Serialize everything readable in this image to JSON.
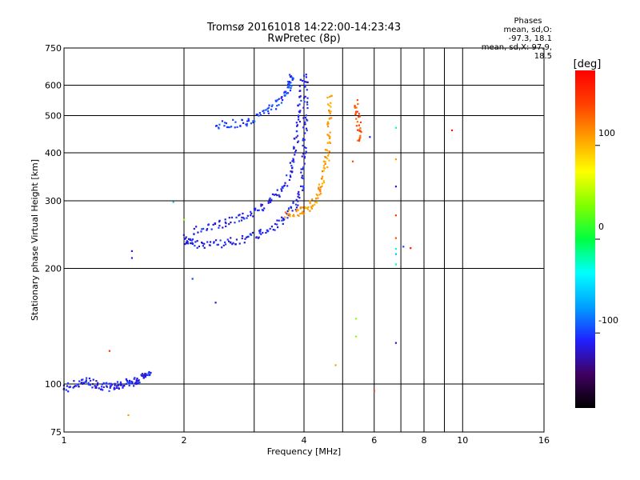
{
  "chart_data": {
    "type": "scatter",
    "title": "Tromsø 20161018 14:22:00-14:23:43",
    "subtitle": "RwPretec (8p)",
    "xlabel": "Frequency [MHz]",
    "ylabel": "Stationary phase Virtual Height [km]",
    "x_scale": "log",
    "y_scale": "log",
    "xlim": [
      1,
      16
    ],
    "ylim": [
      75,
      750
    ],
    "x_ticks": [
      1,
      2,
      4,
      6,
      8,
      10,
      16
    ],
    "y_ticks": [
      75,
      100,
      200,
      300,
      400,
      500,
      600,
      750
    ],
    "x_minor_gridlines": [
      3,
      5,
      7,
      9
    ],
    "grid": true,
    "colorbar": {
      "label": "[deg]",
      "range": [
        -180,
        180
      ],
      "ticks": [
        100,
        0,
        -100
      ],
      "colors": [
        "#000000",
        "#400060",
        "#2020ff",
        "#00a0ff",
        "#00ffff",
        "#00ff40",
        "#80ff00",
        "#ffff00",
        "#ffa000",
        "#ff4000",
        "#ff0000"
      ]
    },
    "phases_header": "Phases",
    "phases_o": "mean, sd,O: -97.3, 18.1",
    "phases_x": "mean, sd,X:  97.9, 18.5",
    "traces": [
      {
        "phase": -110,
        "points": [
          [
            1.0,
            97
          ],
          [
            1.05,
            99
          ],
          [
            1.1,
            101
          ],
          [
            1.15,
            102
          ],
          [
            1.2,
            100
          ],
          [
            1.25,
            99
          ],
          [
            1.3,
            98
          ],
          [
            1.35,
            99
          ],
          [
            1.4,
            100
          ],
          [
            1.45,
            101
          ],
          [
            1.5,
            101
          ],
          [
            1.55,
            103
          ],
          [
            1.6,
            106
          ],
          [
            1.65,
            107
          ]
        ]
      },
      {
        "phase": -110,
        "points": [
          [
            2.0,
            240
          ],
          [
            2.05,
            235
          ],
          [
            2.15,
            232
          ],
          [
            2.3,
            232
          ],
          [
            2.5,
            233
          ],
          [
            2.7,
            236
          ],
          [
            2.9,
            240
          ],
          [
            3.1,
            247
          ],
          [
            3.3,
            255
          ],
          [
            3.5,
            266
          ],
          [
            3.7,
            283
          ],
          [
            3.85,
            300
          ],
          [
            3.95,
            330
          ],
          [
            4.0,
            380
          ],
          [
            4.02,
            430
          ],
          [
            4.03,
            500
          ],
          [
            4.04,
            570
          ],
          [
            4.05,
            640
          ]
        ]
      },
      {
        "phase": -110,
        "points": [
          [
            2.1,
            250
          ],
          [
            2.3,
            255
          ],
          [
            2.5,
            262
          ],
          [
            2.7,
            268
          ],
          [
            2.9,
            275
          ],
          [
            3.1,
            285
          ],
          [
            3.3,
            300
          ],
          [
            3.5,
            318
          ],
          [
            3.65,
            345
          ],
          [
            3.75,
            380
          ],
          [
            3.82,
            420
          ],
          [
            3.87,
            480
          ],
          [
            3.9,
            540
          ],
          [
            3.92,
            620
          ]
        ]
      },
      {
        "phase": -100,
        "points": [
          [
            2.4,
            470
          ],
          [
            2.6,
            475
          ],
          [
            2.8,
            480
          ],
          [
            3.0,
            490
          ],
          [
            3.2,
            510
          ],
          [
            3.4,
            535
          ],
          [
            3.55,
            560
          ],
          [
            3.65,
            590
          ],
          [
            3.7,
            610
          ],
          [
            3.72,
            630
          ]
        ]
      },
      {
        "phase": 110,
        "points": [
          [
            3.6,
            278
          ],
          [
            3.8,
            280
          ],
          [
            4.0,
            283
          ],
          [
            4.15,
            290
          ],
          [
            4.3,
            305
          ],
          [
            4.4,
            325
          ],
          [
            4.5,
            355
          ],
          [
            4.56,
            385
          ],
          [
            4.6,
            420
          ],
          [
            4.62,
            460
          ],
          [
            4.63,
            510
          ],
          [
            4.64,
            560
          ]
        ]
      },
      {
        "phase": 140,
        "points": [
          [
            5.4,
            540
          ],
          [
            5.45,
            500
          ],
          [
            5.5,
            460
          ],
          [
            5.5,
            430
          ]
        ]
      }
    ],
    "sparse_points": [
      {
        "x": 1.48,
        "y": 222,
        "phase": -110
      },
      {
        "x": 1.48,
        "y": 213,
        "phase": -110
      },
      {
        "x": 1.3,
        "y": 122,
        "phase": 150
      },
      {
        "x": 1.45,
        "y": 83,
        "phase": 110
      },
      {
        "x": 2.0,
        "y": 268,
        "phase": 40
      },
      {
        "x": 1.88,
        "y": 298,
        "phase": -60
      },
      {
        "x": 2.1,
        "y": 188,
        "phase": -100
      },
      {
        "x": 2.4,
        "y": 163,
        "phase": -120
      },
      {
        "x": 4.8,
        "y": 112,
        "phase": 110
      },
      {
        "x": 5.4,
        "y": 148,
        "phase": 40
      },
      {
        "x": 5.4,
        "y": 133,
        "phase": 40
      },
      {
        "x": 6.0,
        "y": 96,
        "phase": 140
      },
      {
        "x": 6.8,
        "y": 465,
        "phase": -20
      },
      {
        "x": 6.8,
        "y": 385,
        "phase": 110
      },
      {
        "x": 6.8,
        "y": 327,
        "phase": -120
      },
      {
        "x": 6.8,
        "y": 275,
        "phase": 150
      },
      {
        "x": 6.8,
        "y": 240,
        "phase": 140
      },
      {
        "x": 6.8,
        "y": 225,
        "phase": -40
      },
      {
        "x": 6.8,
        "y": 218,
        "phase": -60
      },
      {
        "x": 6.8,
        "y": 205,
        "phase": -20
      },
      {
        "x": 6.8,
        "y": 128,
        "phase": -120
      },
      {
        "x": 7.1,
        "y": 228,
        "phase": -100
      },
      {
        "x": 7.4,
        "y": 226,
        "phase": 170
      },
      {
        "x": 9.4,
        "y": 458,
        "phase": 170
      },
      {
        "x": 5.85,
        "y": 440,
        "phase": -110
      },
      {
        "x": 5.3,
        "y": 380,
        "phase": 140
      }
    ]
  }
}
